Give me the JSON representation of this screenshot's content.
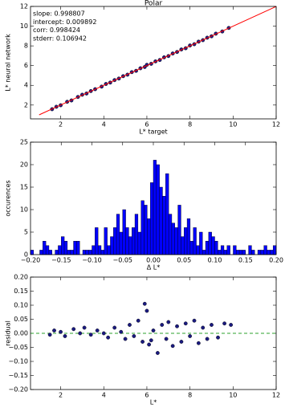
{
  "chart_data": [
    {
      "type": "scatter",
      "title": "Polar",
      "x_label": "L* target",
      "y_label": "L* neural network",
      "annotations": [
        "slope: 0.998807",
        "intercept: 0.009892",
        "corr: 0.998424",
        "stderr: 0.106942"
      ],
      "xlim": [
        0.6,
        12
      ],
      "ylim": [
        0.6,
        12
      ],
      "xticks": [
        2,
        4,
        6,
        8,
        10,
        12
      ],
      "yticks": [
        2,
        4,
        6,
        8,
        10,
        12
      ],
      "points": {
        "color": "#1a1a80",
        "x": [
          1.6,
          1.8,
          2.0,
          2.3,
          2.5,
          2.8,
          3.0,
          3.2,
          3.4,
          3.6,
          3.9,
          4.1,
          4.3,
          4.5,
          4.7,
          4.9,
          5.1,
          5.3,
          5.5,
          5.7,
          5.9,
          6.0,
          6.2,
          6.4,
          6.6,
          6.8,
          7.0,
          7.2,
          7.4,
          7.6,
          7.8,
          8.0,
          8.2,
          8.4,
          8.6,
          8.8,
          9.0,
          9.2,
          9.5,
          9.8
        ],
        "y": [
          1.58,
          1.83,
          1.98,
          2.33,
          2.47,
          2.82,
          3.05,
          3.17,
          3.42,
          3.61,
          3.87,
          4.14,
          4.28,
          4.53,
          4.69,
          4.93,
          5.08,
          5.34,
          5.47,
          5.73,
          5.86,
          6.08,
          6.18,
          6.43,
          6.57,
          6.84,
          6.97,
          7.23,
          7.38,
          7.64,
          7.76,
          8.04,
          8.17,
          8.43,
          8.58,
          8.83,
          8.97,
          9.24,
          9.46,
          9.82
        ]
      },
      "fit_line": {
        "color": "#ff0000",
        "x": [
          1,
          12
        ],
        "y": [
          1.008,
          11.995
        ]
      }
    },
    {
      "type": "histogram",
      "x_label": "Δ L*",
      "y_label": "occurences",
      "color": "#0000ff",
      "xlim": [
        -0.2,
        0.2
      ],
      "ylim": [
        0,
        25
      ],
      "xticks": [
        {
          "value": -0.2,
          "label": "−0.20"
        },
        {
          "value": -0.15,
          "label": "−0.15"
        },
        {
          "value": -0.1,
          "label": "−0.10"
        },
        {
          "value": -0.05,
          "label": "−0.05"
        },
        {
          "value": 0,
          "label": "0.00"
        },
        {
          "value": 0.05,
          "label": "0.05"
        },
        {
          "value": 0.1,
          "label": "0.10"
        },
        {
          "value": 0.15,
          "label": "0.15"
        },
        {
          "value": 0.2,
          "label": "0.20"
        }
      ],
      "yticks": [
        0,
        5,
        10,
        15,
        20,
        25
      ],
      "bins": [
        -0.2,
        -0.195,
        -0.19,
        -0.185,
        -0.18,
        -0.175,
        -0.17,
        -0.165,
        -0.16,
        -0.155,
        -0.15,
        -0.145,
        -0.14,
        -0.135,
        -0.13,
        -0.125,
        -0.12,
        -0.115,
        -0.11,
        -0.105,
        -0.1,
        -0.095,
        -0.09,
        -0.085,
        -0.08,
        -0.075,
        -0.07,
        -0.065,
        -0.06,
        -0.055,
        -0.05,
        -0.045,
        -0.04,
        -0.035,
        -0.03,
        -0.025,
        -0.02,
        -0.015,
        -0.01,
        -0.005,
        0,
        0.005,
        0.01,
        0.015,
        0.02,
        0.025,
        0.03,
        0.035,
        0.04,
        0.045,
        0.05,
        0.055,
        0.06,
        0.065,
        0.07,
        0.075,
        0.08,
        0.085,
        0.09,
        0.095,
        0.1,
        0.105,
        0.11,
        0.115,
        0.12,
        0.125,
        0.13,
        0.135,
        0.14,
        0.145,
        0.15,
        0.155,
        0.16,
        0.165,
        0.17,
        0.175,
        0.18,
        0.185,
        0.19,
        0.195,
        0.2
      ],
      "counts": [
        1,
        0,
        0,
        1,
        3,
        2,
        1,
        0,
        1,
        2,
        4,
        3,
        1,
        1,
        3,
        3,
        0,
        1,
        1,
        1,
        2,
        6,
        2,
        1,
        6,
        2,
        4,
        6,
        9,
        5,
        10,
        6,
        4,
        6,
        9,
        5,
        12,
        11,
        8,
        16,
        21,
        20,
        15,
        13,
        18,
        9,
        7,
        6,
        11,
        4,
        6,
        8,
        3,
        6,
        2,
        5,
        1,
        3,
        5,
        4,
        3,
        1,
        2,
        1,
        2,
        0,
        2,
        1,
        1,
        1,
        0,
        2,
        1,
        0,
        1,
        1,
        2,
        1,
        1,
        2
      ]
    },
    {
      "type": "scatter",
      "x_label": "L*",
      "y_label": "residual",
      "xlim": [
        0.6,
        12
      ],
      "ylim": [
        -0.2,
        0.2
      ],
      "xticks": [
        2,
        4,
        6,
        8,
        10,
        12
      ],
      "yticks": [
        {
          "value": -0.2,
          "label": "−0.20"
        },
        {
          "value": -0.15,
          "label": "−0.15"
        },
        {
          "value": -0.1,
          "label": "−0.10"
        },
        {
          "value": -0.05,
          "label": "−0.05"
        },
        {
          "value": 0,
          "label": "0.00"
        },
        {
          "value": 0.05,
          "label": "0.05"
        },
        {
          "value": 0.1,
          "label": "0.10"
        },
        {
          "value": 0.15,
          "label": "0.15"
        },
        {
          "value": 0.2,
          "label": "0.20"
        }
      ],
      "reference_line": {
        "y": 0,
        "color": "#2ca02c"
      },
      "points": {
        "color": "#1a1a80",
        "x": [
          1.5,
          1.7,
          2.0,
          2.2,
          2.6,
          2.9,
          3.1,
          3.4,
          3.7,
          4.0,
          4.2,
          4.5,
          4.8,
          5.0,
          5.2,
          5.4,
          5.6,
          5.8,
          5.9,
          6.0,
          6.1,
          6.2,
          6.3,
          6.5,
          6.7,
          6.9,
          7.0,
          7.2,
          7.4,
          7.6,
          7.8,
          8.0,
          8.2,
          8.4,
          8.6,
          8.8,
          9.0,
          9.3,
          9.6,
          9.9
        ],
        "y": [
          -0.005,
          0.01,
          0.005,
          -0.01,
          0.015,
          0.0,
          0.02,
          -0.005,
          0.01,
          0.0,
          -0.015,
          0.02,
          0.005,
          -0.02,
          0.03,
          -0.01,
          0.045,
          -0.03,
          0.105,
          0.08,
          -0.04,
          -0.025,
          0.01,
          -0.07,
          0.03,
          -0.02,
          0.04,
          -0.045,
          0.025,
          -0.03,
          0.035,
          -0.01,
          0.045,
          -0.035,
          0.02,
          -0.02,
          0.03,
          -0.015,
          0.035,
          0.03
        ]
      }
    }
  ]
}
